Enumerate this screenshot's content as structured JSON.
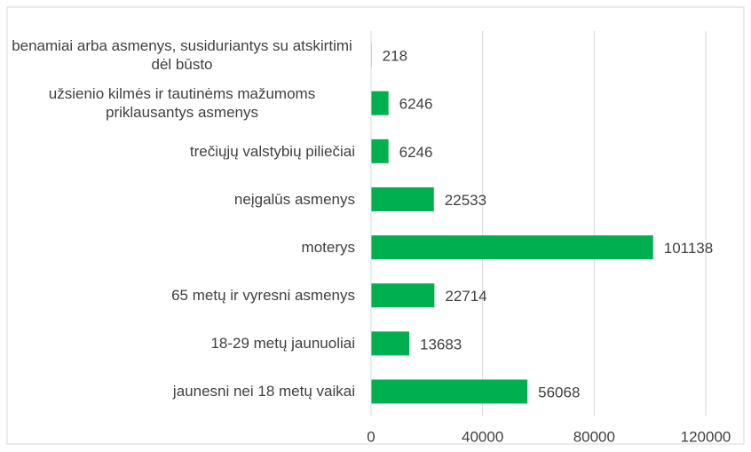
{
  "chart_data": {
    "type": "barh",
    "categories": [
      "benamiai arba asmenys, susiduriantys su atskirtimi dėl būsto",
      "užsienio kilmės ir tautinėms mažumoms priklausantys asmenys",
      "trečiųjų valstybių piliečiai",
      "neįgalūs asmenys",
      "moterys",
      "65 metų ir vyresni asmenys",
      "18-29 metų jaunuoliai",
      "jaunesni nei 18 metų vaikai"
    ],
    "values": [
      218,
      6246,
      6246,
      22533,
      101138,
      22714,
      13683,
      56068
    ],
    "color": "#00b050",
    "xlim": [
      0,
      120000
    ],
    "xticks": [
      0,
      40000,
      80000,
      120000
    ],
    "grid": true
  }
}
